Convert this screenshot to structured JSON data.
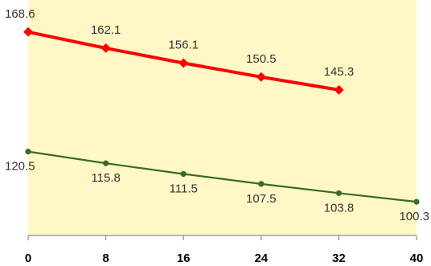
{
  "chart_data": {
    "type": "line",
    "x": [
      0,
      8,
      16,
      24,
      32,
      40
    ],
    "xlim": [
      0,
      40
    ],
    "ylim": [
      90,
      175
    ],
    "grid": false,
    "plot_background": "#fff8c6",
    "series": [
      {
        "x": [
          0,
          8,
          16,
          24,
          32
        ],
        "values": [
          168.6,
          162.1,
          156.1,
          150.5,
          145.3
        ],
        "labels": [
          "168.6",
          "162.1",
          "156.1",
          "150.5",
          "145.3"
        ],
        "color": "#ff0000",
        "marker": "diamond"
      },
      {
        "x": [
          0,
          8,
          16,
          24,
          32,
          40
        ],
        "values": [
          120.5,
          115.8,
          111.5,
          107.5,
          103.8,
          100.3
        ],
        "labels": [
          "120.5",
          "115.8",
          "111.5",
          "107.5",
          "103.8",
          "100.3"
        ],
        "color": "#3a6b22",
        "marker": "circle"
      }
    ],
    "x_tick_labels": [
      "0",
      "8",
      "16",
      "24",
      "32",
      "40"
    ]
  }
}
